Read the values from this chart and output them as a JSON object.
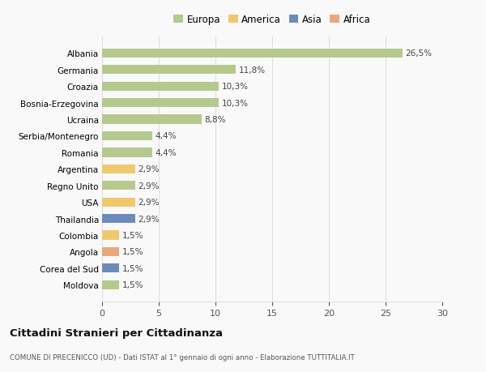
{
  "categories": [
    "Albania",
    "Germania",
    "Croazia",
    "Bosnia-Erzegovina",
    "Ucraina",
    "Serbia/Montenegro",
    "Romania",
    "Argentina",
    "Regno Unito",
    "USA",
    "Thailandia",
    "Colombia",
    "Angola",
    "Corea del Sud",
    "Moldova"
  ],
  "values": [
    26.5,
    11.8,
    10.3,
    10.3,
    8.8,
    4.4,
    4.4,
    2.9,
    2.9,
    2.9,
    2.9,
    1.5,
    1.5,
    1.5,
    1.5
  ],
  "labels": [
    "26,5%",
    "11,8%",
    "10,3%",
    "10,3%",
    "8,8%",
    "4,4%",
    "4,4%",
    "2,9%",
    "2,9%",
    "2,9%",
    "2,9%",
    "1,5%",
    "1,5%",
    "1,5%",
    "1,5%"
  ],
  "colors": [
    "#b5c98e",
    "#b5c98e",
    "#b5c98e",
    "#b5c98e",
    "#b5c98e",
    "#b5c98e",
    "#b5c98e",
    "#f0c96e",
    "#b5c98e",
    "#f0c96e",
    "#6b8cba",
    "#f0c96e",
    "#e8a87c",
    "#6b8cba",
    "#b5c98e"
  ],
  "legend_labels": [
    "Europa",
    "America",
    "Asia",
    "Africa"
  ],
  "legend_colors": [
    "#b5c98e",
    "#f0c96e",
    "#6b8cba",
    "#e8a87c"
  ],
  "title": "Cittadini Stranieri per Cittadinanza",
  "subtitle": "COMUNE DI PRECENICCO (UD) - Dati ISTAT al 1° gennaio di ogni anno - Elaborazione TUTTITALIA.IT",
  "xlim": [
    0,
    30
  ],
  "xticks": [
    0,
    5,
    10,
    15,
    20,
    25,
    30
  ],
  "background_color": "#f9f9f9",
  "grid_color": "#dddddd",
  "bar_height": 0.55
}
